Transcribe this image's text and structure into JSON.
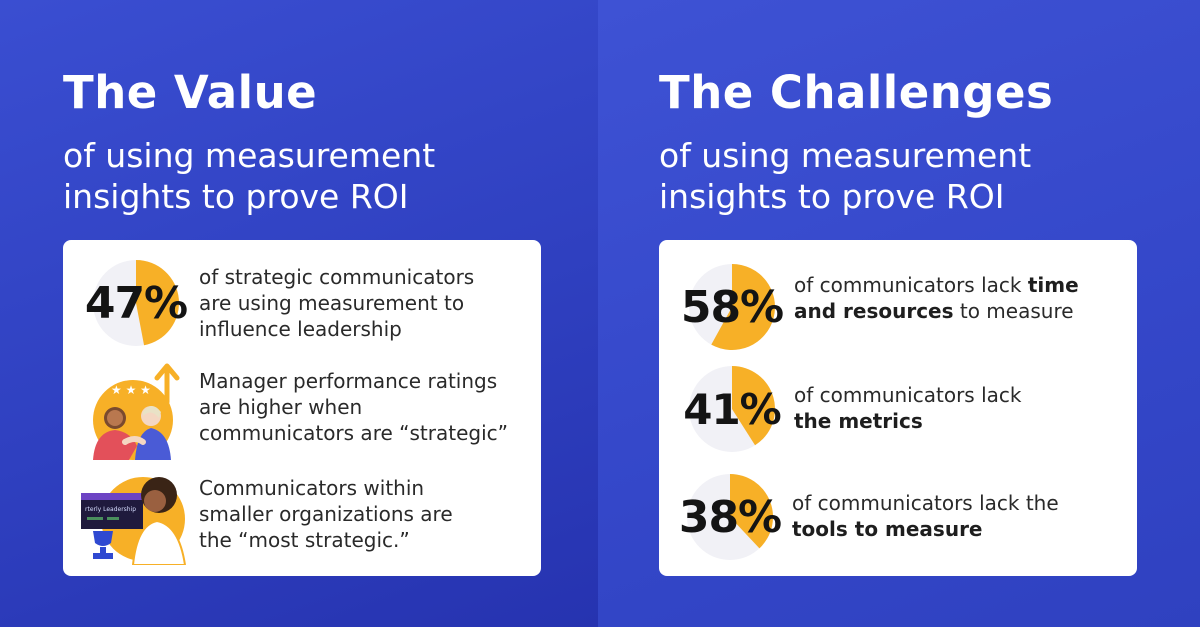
{
  "left": {
    "title": "The Value",
    "subtitle_line1": "of using measurement",
    "subtitle_line2": "insights to prove ROI",
    "items": [
      {
        "type": "pie",
        "percent_label": "47%",
        "fraction": 0.47,
        "line1": "of strategic communicators",
        "line2": "are using measurement to",
        "line3": "influence leadership"
      },
      {
        "type": "illustration",
        "icon": "handshake-rating-illustration",
        "line1": "Manager performance ratings",
        "line2": "are higher when",
        "line3": "communicators are “strategic”"
      },
      {
        "type": "illustration",
        "icon": "trophy-presenter-illustration",
        "screen_text": "rterly Leadership",
        "line1": "Communicators within",
        "line2": "smaller organizations are",
        "line3": "the “most strategic.”"
      }
    ]
  },
  "right": {
    "title": "The Challenges",
    "subtitle_line1": "of using measurement",
    "subtitle_line2": "insights to prove ROI",
    "items": [
      {
        "percent_label": "58%",
        "fraction": 0.58,
        "pre": "of communicators lack ",
        "bold1": "time",
        "bold2": "and resources",
        "post": " to measure"
      },
      {
        "percent_label": "41%",
        "fraction": 0.41,
        "pre": "of communicators lack",
        "bold2": "the metrics"
      },
      {
        "percent_label": "38%",
        "fraction": 0.38,
        "pre": "of communicators lack the",
        "bold2": "tools to measure"
      }
    ]
  },
  "colors": {
    "pie_fill": "#f7b027",
    "pie_bg": "#f1f1f6",
    "card": "#ffffff",
    "text": "#2a2a2a"
  }
}
